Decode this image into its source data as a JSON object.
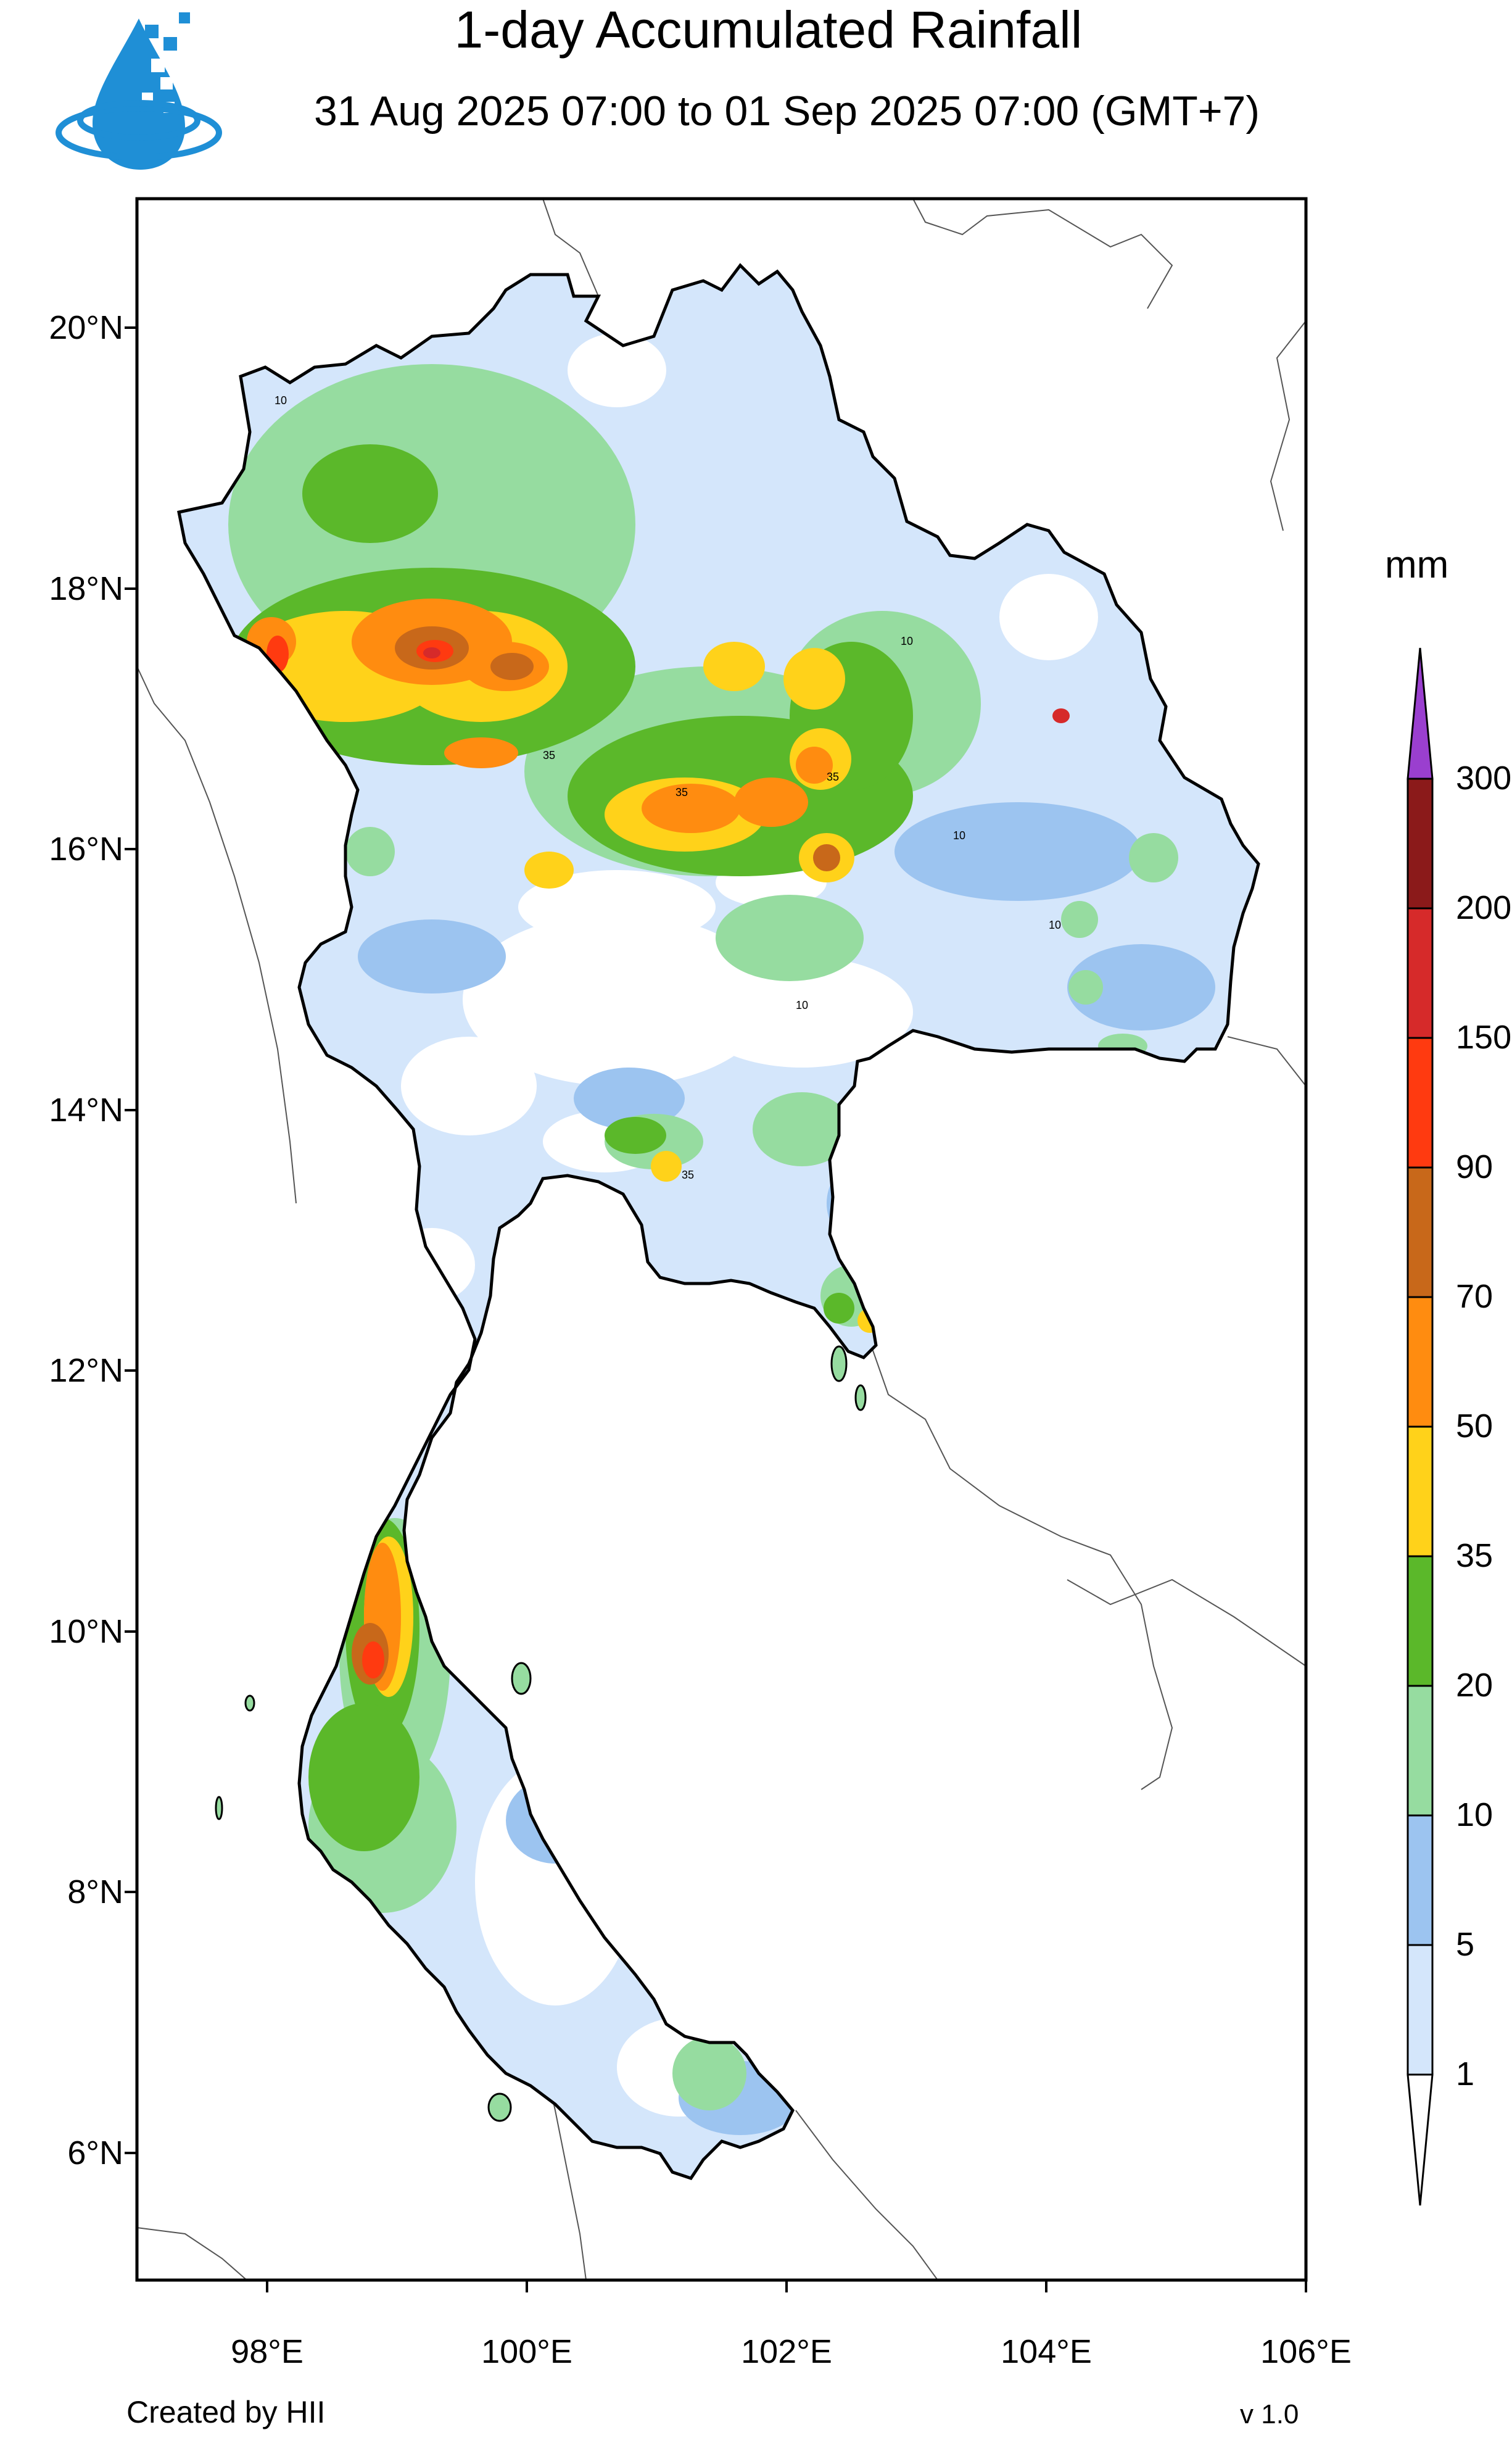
{
  "header": {
    "title": "1-day Accumulated Rainfall",
    "subtitle": "31 Aug 2025 07:00 to 01 Sep 2025 07:00 (GMT+7)"
  },
  "footer": {
    "credit": "Created by HII",
    "version": "v 1.0"
  },
  "map": {
    "latitude_labels": [
      "20°N",
      "18°N",
      "16°N",
      "14°N",
      "12°N",
      "10°N",
      "8°N",
      "6°N"
    ],
    "longitude_labels": [
      "98°E",
      "100°E",
      "102°E",
      "104°E",
      "106°E"
    ],
    "contour_labels": [
      "10",
      "35",
      "35",
      "35",
      "10",
      "10",
      "35",
      "10",
      "10"
    ]
  },
  "colorbar": {
    "unit": "mm",
    "levels": [
      "300",
      "200",
      "150",
      "90",
      "70",
      "50",
      "35",
      "20",
      "10",
      "5",
      "1"
    ],
    "colors": {
      "c300_plus": "#9a3fcf",
      "c200_300": "#8b1a1a",
      "c150_200": "#d62a2a",
      "c90_150": "#ff3a10",
      "c70_90": "#c8681a",
      "c50_70": "#ff8c10",
      "c35_50": "#ffd21a",
      "c20_35": "#5bb82a",
      "c10_20": "#96dca0",
      "c5_10": "#9cc4f0",
      "c1_5": "#d4e6fb",
      "c0_1": "#ffffff"
    }
  }
}
